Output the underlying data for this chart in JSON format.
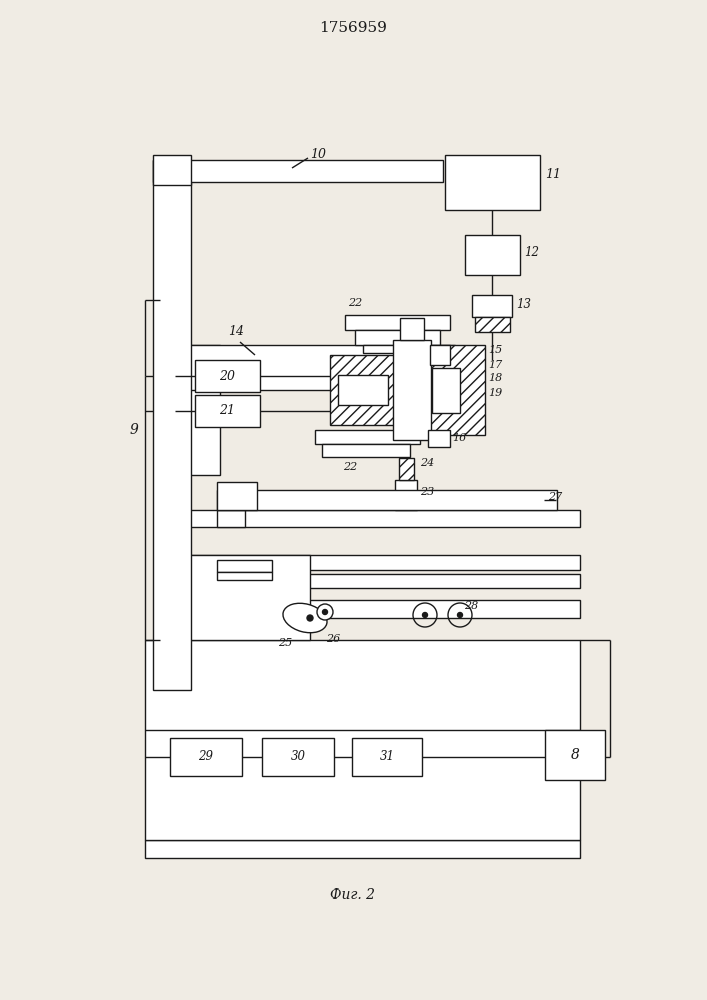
{
  "title": "1756959",
  "caption": "Фиг. 2",
  "bg_color": "#f0ece4",
  "line_color": "#1a1a1a",
  "figsize": [
    7.07,
    10.0
  ],
  "dpi": 100
}
